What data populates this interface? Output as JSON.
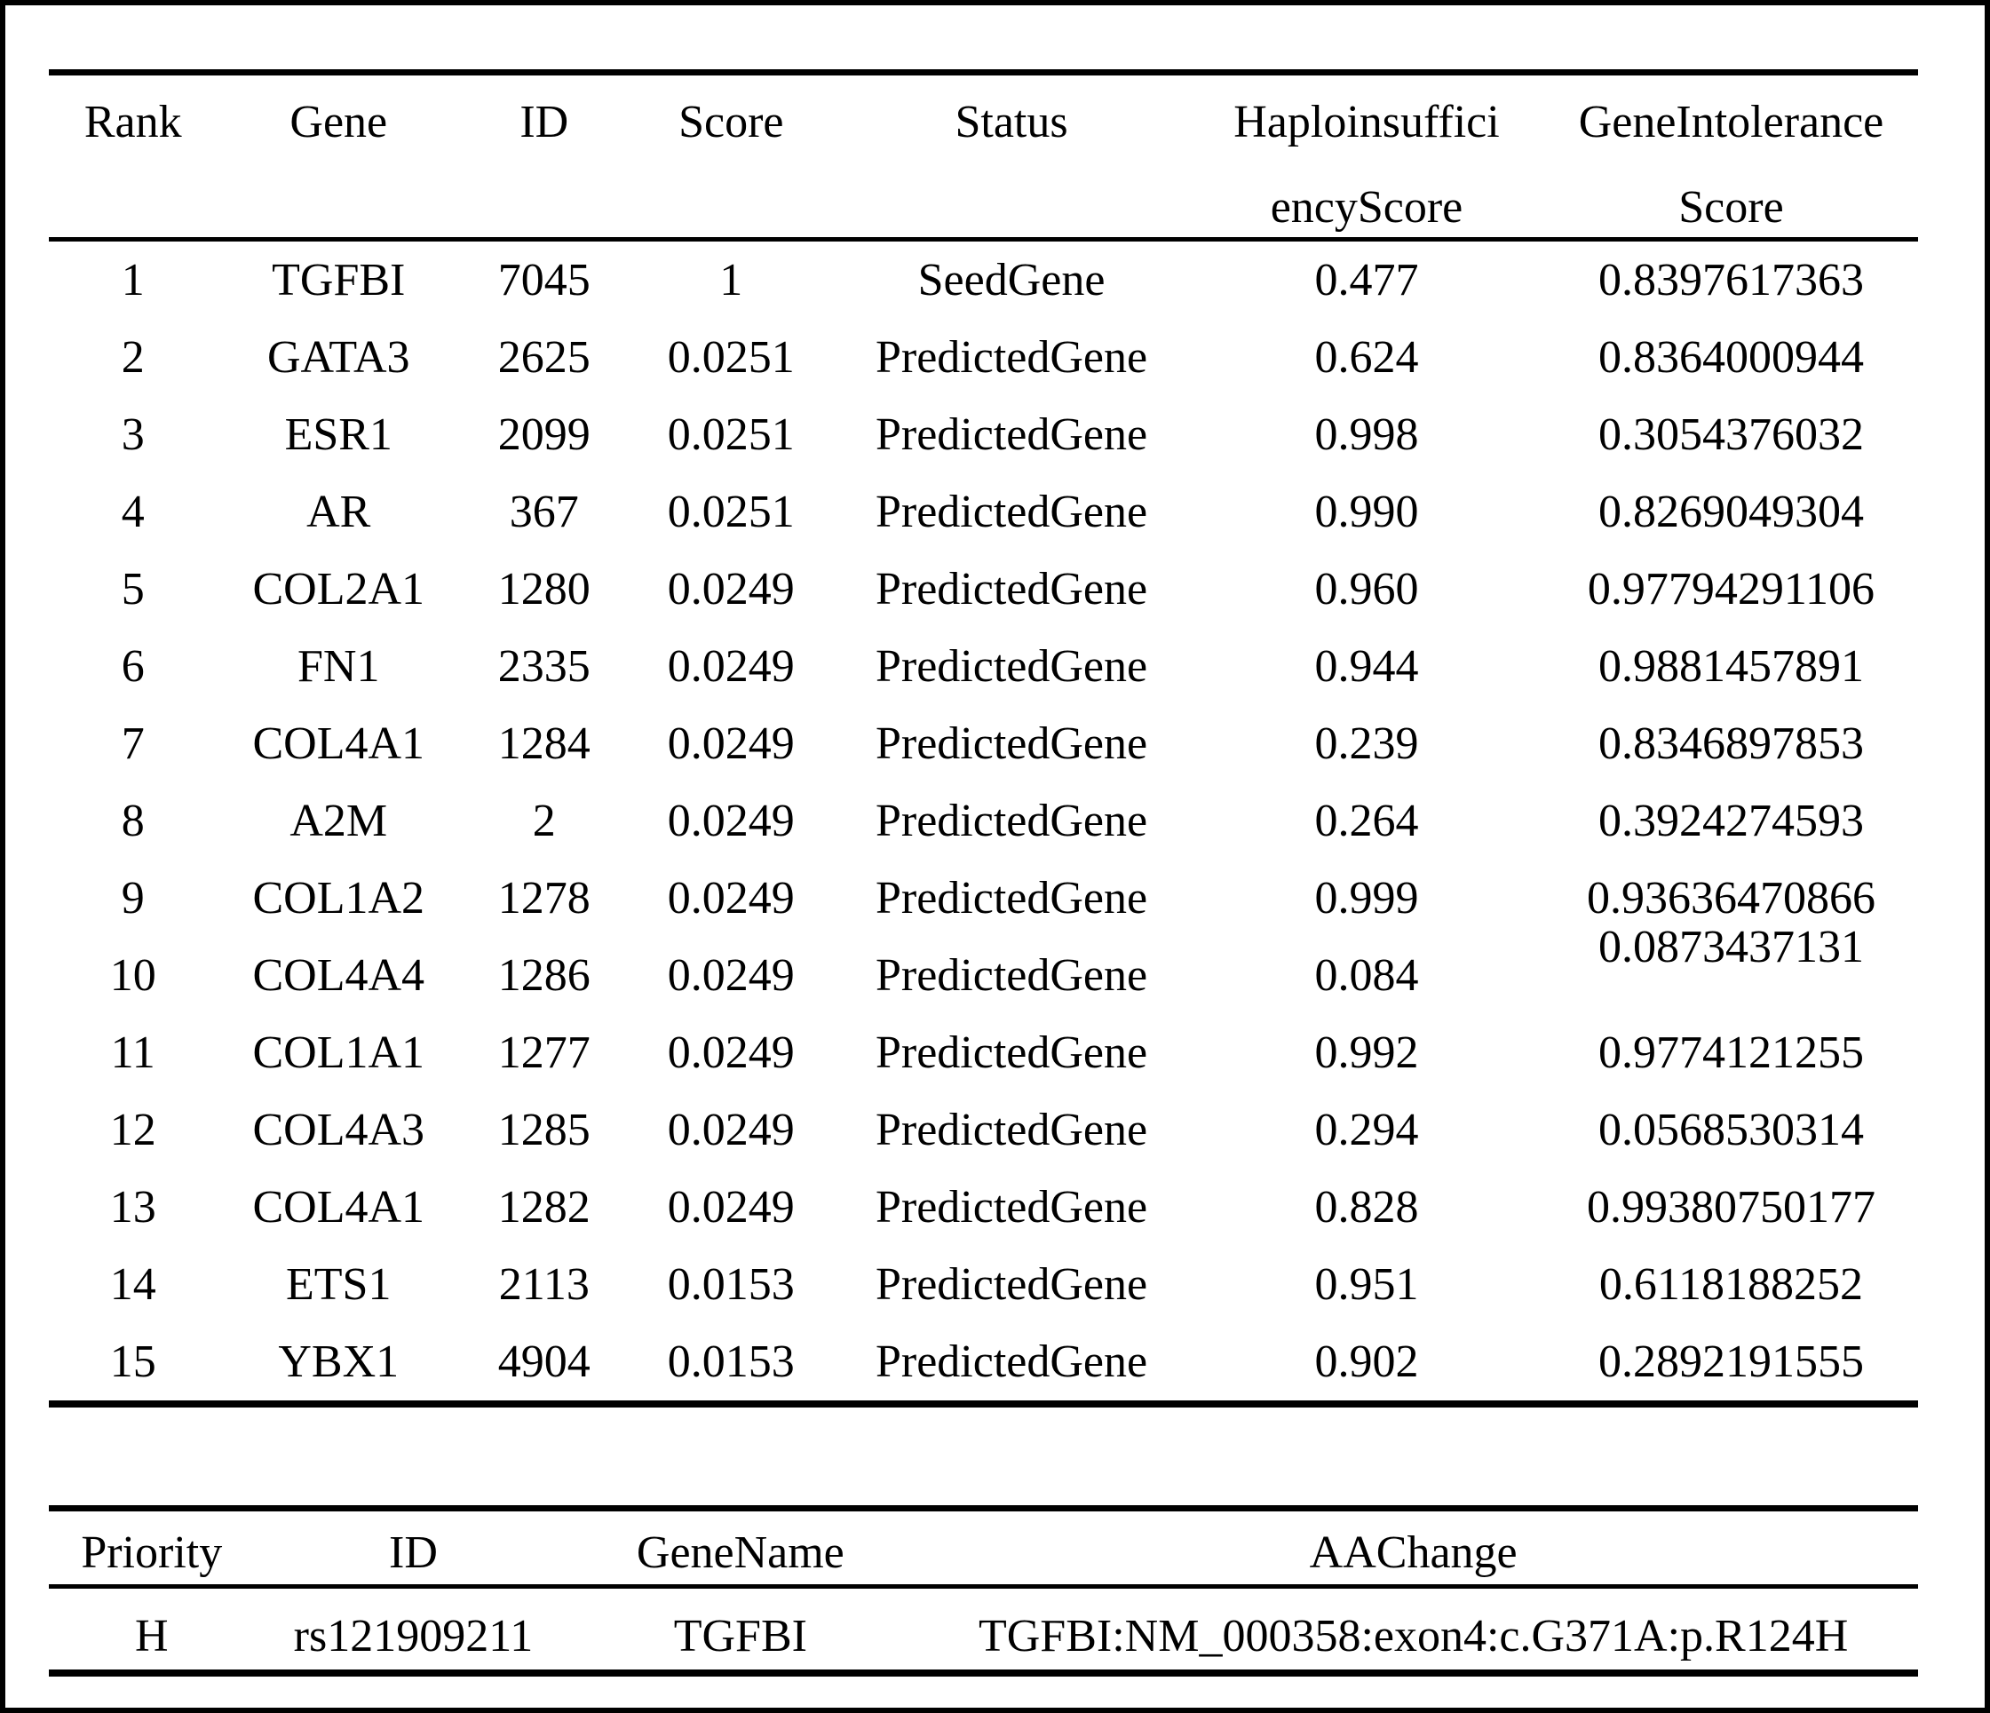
{
  "gene_table": {
    "headers": [
      {
        "line1": "Rank",
        "line2": ""
      },
      {
        "line1": "Gene",
        "line2": ""
      },
      {
        "line1": "ID",
        "line2": ""
      },
      {
        "line1": "Score",
        "line2": ""
      },
      {
        "line1": "Status",
        "line2": ""
      },
      {
        "line1": "Haploinsuffici",
        "line2": "encyScore"
      },
      {
        "line1": "GeneIntolerance",
        "line2": "Score"
      }
    ],
    "column_keys": [
      "rank",
      "gene",
      "id",
      "score",
      "status",
      "haploinsufficiency-score",
      "gene-intolerance-score"
    ],
    "rows": [
      [
        "1",
        "TGFBI",
        "7045",
        "1",
        "SeedGene",
        "0.477",
        "0.8397617363"
      ],
      [
        "2",
        "GATA3",
        "2625",
        "0.0251",
        "PredictedGene",
        "0.624",
        "0.8364000944"
      ],
      [
        "3",
        "ESR1",
        "2099",
        "0.0251",
        "PredictedGene",
        "0.998",
        "0.3054376032"
      ],
      [
        "4",
        "AR",
        "367",
        "0.0251",
        "PredictedGene",
        "0.990",
        "0.8269049304"
      ],
      [
        "5",
        "COL2A1",
        "1280",
        "0.0249",
        "PredictedGene",
        "0.960",
        "0.97794291106"
      ],
      [
        "6",
        "FN1",
        "2335",
        "0.0249",
        "PredictedGene",
        "0.944",
        "0.9881457891"
      ],
      [
        "7",
        "COL4A1",
        "1284",
        "0.0249",
        "PredictedGene",
        "0.239",
        "0.8346897853"
      ],
      [
        "8",
        "A2M",
        "2",
        "0.0249",
        "PredictedGene",
        "0.264",
        "0.3924274593"
      ],
      [
        "9",
        "COL1A2",
        "1278",
        "0.0249",
        "PredictedGene",
        "0.999",
        "0.93636470866"
      ],
      [
        "10",
        "COL4A4",
        "1286",
        "0.0249",
        "PredictedGene",
        "0.084",
        "0.0873437131"
      ],
      [
        "11",
        "COL1A1",
        "1277",
        "0.0249",
        "PredictedGene",
        "0.992",
        "0.9774121255"
      ],
      [
        "12",
        "COL4A3",
        "1285",
        "0.0249",
        "PredictedGene",
        "0.294",
        "0.0568530314"
      ],
      [
        "13",
        "COL4A1",
        "1282",
        "0.0249",
        "PredictedGene",
        "0.828",
        "0.99380750177"
      ],
      [
        "14",
        "ETS1",
        "2113",
        "0.0153",
        "PredictedGene",
        "0.951",
        "0.6118188252"
      ],
      [
        "15",
        "YBX1",
        "4904",
        "0.0153",
        "PredictedGene",
        "0.902",
        "0.2892191555"
      ]
    ]
  },
  "variant_table": {
    "headers": [
      "Priority",
      "ID",
      "GeneName",
      "AAChange"
    ],
    "column_keys": [
      "priority",
      "id",
      "gene-name",
      "aa-change"
    ],
    "rows": [
      [
        "H",
        "rs121909211",
        "TGFBI",
        "TGFBI:NM_000358:exon4:c.G371A:p.R124H"
      ]
    ]
  },
  "colors": {
    "text": "#000000",
    "background": "#ffffff",
    "rule": "#000000"
  }
}
